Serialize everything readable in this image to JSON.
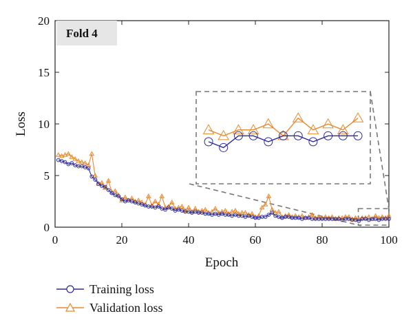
{
  "colors": {
    "training": "#2b2a9c",
    "validation": "#e8892b",
    "label_box": "#e6e6e6",
    "zoom_dash": "#777777",
    "axis": "#222222"
  },
  "chart_data": {
    "type": "line",
    "panel_label": "Fold 4",
    "xlabel": "Epoch",
    "ylabel": "Loss",
    "xlim": [
      0,
      100
    ],
    "ylim": [
      0,
      20
    ],
    "xticks": [
      0,
      20,
      40,
      60,
      80,
      100
    ],
    "yticks": [
      0,
      5,
      10,
      15,
      20
    ],
    "grid": false,
    "legend_position": "below",
    "series": [
      {
        "name": "Training loss",
        "marker": "circle",
        "x": [
          1,
          2,
          3,
          4,
          5,
          6,
          7,
          8,
          9,
          10,
          11,
          12,
          13,
          14,
          15,
          16,
          17,
          18,
          19,
          20,
          21,
          22,
          23,
          24,
          25,
          26,
          27,
          28,
          29,
          30,
          31,
          32,
          33,
          34,
          35,
          36,
          37,
          38,
          39,
          40,
          41,
          42,
          43,
          44,
          45,
          46,
          47,
          48,
          49,
          50,
          51,
          52,
          53,
          54,
          55,
          56,
          57,
          58,
          59,
          60,
          61,
          62,
          63,
          64,
          65,
          66,
          67,
          68,
          69,
          70,
          71,
          72,
          73,
          74,
          75,
          76,
          77,
          78,
          79,
          80,
          81,
          82,
          83,
          84,
          85,
          86,
          87,
          88,
          89,
          90,
          91,
          92,
          93,
          94,
          95,
          96,
          97,
          98,
          99,
          100
        ],
        "values": [
          6.5,
          6.4,
          6.3,
          6.1,
          6.2,
          6.0,
          5.9,
          5.9,
          5.8,
          5.7,
          4.9,
          4.6,
          4.2,
          4.0,
          3.9,
          3.6,
          3.3,
          3.1,
          3.0,
          2.7,
          2.5,
          2.6,
          2.5,
          2.4,
          2.3,
          2.2,
          2.1,
          2.0,
          2.0,
          1.9,
          2.0,
          1.8,
          1.7,
          1.9,
          1.8,
          1.6,
          1.7,
          1.6,
          1.5,
          1.5,
          1.4,
          1.5,
          1.4,
          1.4,
          1.3,
          1.3,
          1.2,
          1.3,
          1.2,
          1.3,
          1.2,
          1.2,
          1.1,
          1.2,
          1.1,
          1.1,
          1.0,
          1.1,
          1.0,
          0.9,
          0.9,
          1.0,
          1.0,
          1.2,
          1.4,
          1.1,
          1.0,
          0.9,
          1.0,
          1.0,
          0.9,
          0.9,
          0.9,
          0.8,
          0.9,
          0.9,
          0.8,
          0.8,
          0.8,
          0.8,
          0.8,
          0.8,
          0.8,
          0.8,
          0.8,
          0.7,
          0.8,
          0.8,
          0.7,
          0.7,
          0.6,
          0.8,
          0.8,
          0.7,
          0.8,
          0.8,
          0.7,
          0.8,
          0.8,
          0.8
        ]
      },
      {
        "name": "Validation loss",
        "marker": "triangle",
        "x": [
          1,
          2,
          3,
          4,
          5,
          6,
          7,
          8,
          9,
          10,
          11,
          12,
          13,
          14,
          15,
          16,
          17,
          18,
          19,
          20,
          21,
          22,
          23,
          24,
          25,
          26,
          27,
          28,
          29,
          30,
          31,
          32,
          33,
          34,
          35,
          36,
          37,
          38,
          39,
          40,
          41,
          42,
          43,
          44,
          45,
          46,
          47,
          48,
          49,
          50,
          51,
          52,
          53,
          54,
          55,
          56,
          57,
          58,
          59,
          60,
          61,
          62,
          63,
          64,
          65,
          66,
          67,
          68,
          69,
          70,
          71,
          72,
          73,
          74,
          75,
          76,
          77,
          78,
          79,
          80,
          81,
          82,
          83,
          84,
          85,
          86,
          87,
          88,
          89,
          90,
          91,
          92,
          93,
          94,
          95,
          96,
          97,
          98,
          99,
          100
        ],
        "values": [
          7.0,
          6.9,
          7.0,
          7.1,
          6.8,
          6.6,
          6.4,
          6.3,
          6.2,
          6.0,
          7.1,
          5.0,
          4.2,
          4.3,
          3.8,
          4.5,
          3.4,
          3.5,
          3.1,
          2.6,
          2.9,
          2.6,
          2.8,
          2.5,
          2.6,
          2.4,
          2.2,
          3.0,
          2.1,
          2.5,
          2.2,
          3.0,
          1.9,
          2.0,
          2.4,
          1.8,
          1.9,
          2.0,
          1.6,
          1.9,
          1.5,
          1.8,
          1.5,
          1.6,
          1.7,
          1.4,
          1.5,
          1.8,
          1.4,
          1.5,
          1.6,
          1.3,
          1.5,
          1.6,
          1.3,
          1.4,
          1.4,
          1.2,
          1.3,
          1.0,
          1.1,
          1.9,
          2.2,
          3.0,
          1.7,
          1.4,
          1.5,
          1.0,
          1.1,
          1.2,
          1.0,
          1.1,
          1.0,
          1.1,
          0.9,
          1.0,
          1.2,
          0.9,
          1.0,
          0.9,
          1.0,
          0.9,
          1.0,
          0.8,
          0.9,
          0.9,
          1.0,
          1.0,
          0.8,
          0.9,
          0.8,
          0.9,
          0.9,
          1.0,
          0.8,
          1.1,
          0.9,
          1.0,
          0.9,
          1.1
        ]
      }
    ],
    "inset": {
      "description_source": "zoomed view of epochs 90-100",
      "x_range": [
        90,
        100
      ],
      "y_range": [
        0,
        2
      ]
    }
  }
}
